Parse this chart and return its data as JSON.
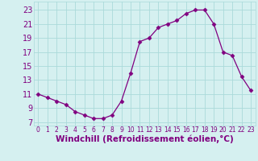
{
  "x": [
    0,
    1,
    2,
    3,
    4,
    5,
    6,
    7,
    8,
    9,
    10,
    11,
    12,
    13,
    14,
    15,
    16,
    17,
    18,
    19,
    20,
    21,
    22,
    23
  ],
  "y": [
    11,
    10.5,
    10,
    9.5,
    8.5,
    8,
    7.5,
    7.5,
    8,
    10,
    14,
    18.5,
    19,
    20.5,
    21,
    21.5,
    22.5,
    23,
    23,
    21,
    17,
    16.5,
    13.5,
    11.5
  ],
  "line_color": "#800080",
  "marker": "D",
  "marker_size": 2.5,
  "bg_color": "#d5f0f0",
  "grid_color": "#aadada",
  "xlabel": "Windchill (Refroidissement éolien,°C)",
  "yticks": [
    7,
    9,
    11,
    13,
    15,
    17,
    19,
    21,
    23
  ],
  "xticks": [
    0,
    1,
    2,
    3,
    4,
    5,
    6,
    7,
    8,
    9,
    10,
    11,
    12,
    13,
    14,
    15,
    16,
    17,
    18,
    19,
    20,
    21,
    22,
    23
  ],
  "ylim": [
    6.5,
    24.2
  ],
  "xlim": [
    -0.5,
    23.5
  ],
  "ytick_fontsize": 7,
  "xtick_fontsize": 5.5,
  "xlabel_fontsize": 7.5,
  "tick_color": "#800080"
}
